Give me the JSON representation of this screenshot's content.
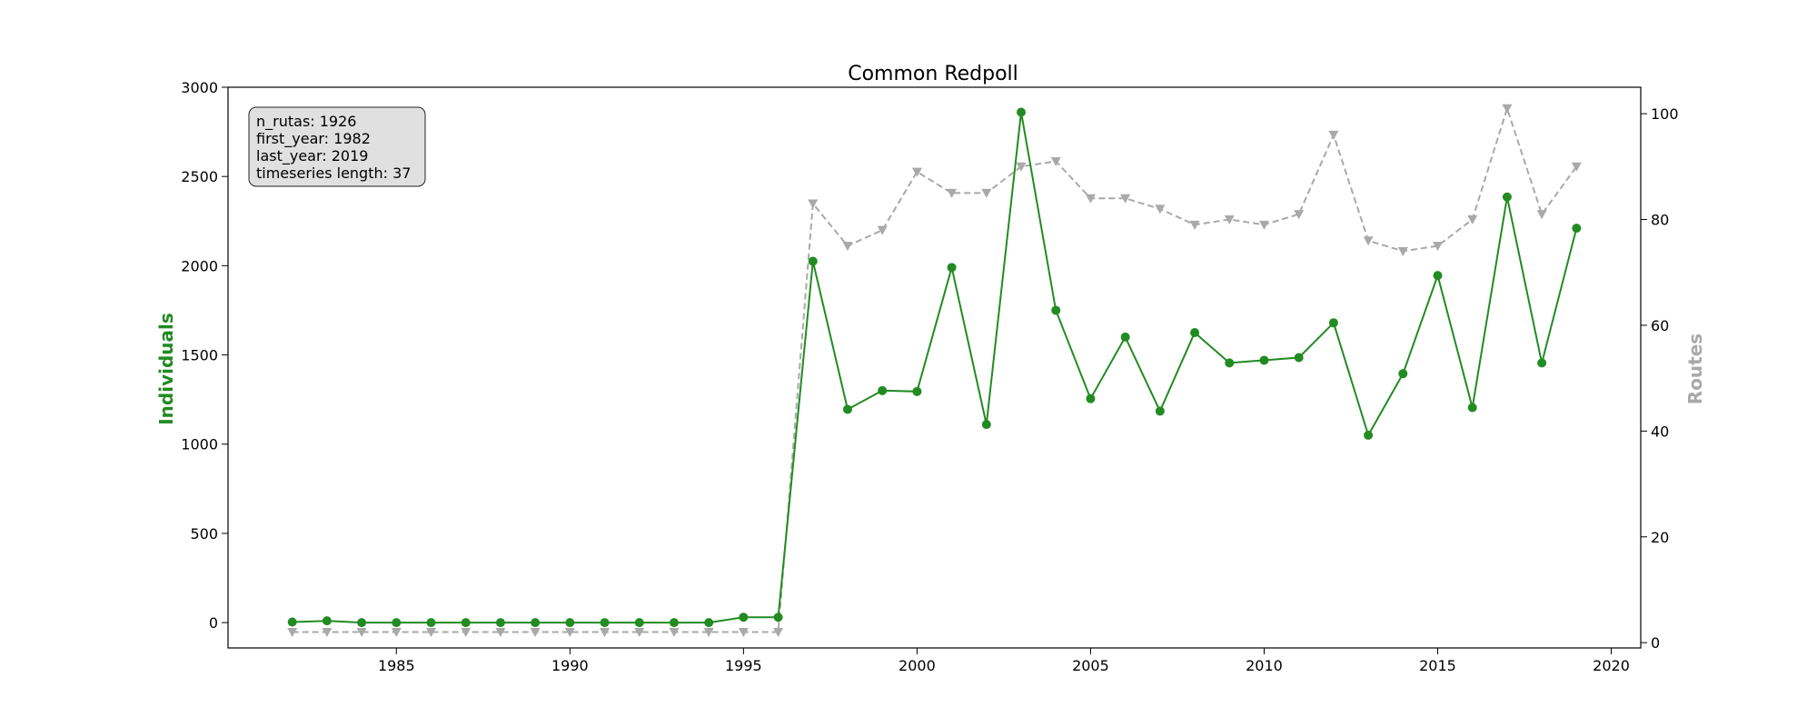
{
  "chart_data": {
    "type": "line",
    "title": "Common Redpoll",
    "xlabel": "",
    "ylabel_left": "Individuals",
    "ylabel_right": "Routes",
    "xlim": [
      1980.15,
      2020.85
    ],
    "ylim_left": [
      -142,
      3000
    ],
    "ylim_right": [
      -1,
      105
    ],
    "x_ticks": [
      1985,
      1990,
      1995,
      2000,
      2005,
      2010,
      2015,
      2020
    ],
    "y_left_ticks": [
      0,
      500,
      1000,
      1500,
      2000,
      2500,
      3000
    ],
    "y_right_ticks": [
      0,
      20,
      40,
      60,
      80,
      100
    ],
    "grid": false,
    "x": [
      1982,
      1983,
      1984,
      1985,
      1986,
      1987,
      1988,
      1989,
      1990,
      1991,
      1992,
      1993,
      1994,
      1995,
      1996,
      1997,
      1998,
      1999,
      2000,
      2001,
      2002,
      2003,
      2004,
      2005,
      2006,
      2007,
      2008,
      2009,
      2010,
      2011,
      2012,
      2013,
      2014,
      2015,
      2016,
      2017,
      2018,
      2019
    ],
    "series": [
      {
        "name": "Individuals",
        "axis": "left",
        "color": "#228b22",
        "marker": "circle",
        "linestyle": "solid",
        "values": [
          3,
          10,
          0,
          0,
          0,
          0,
          0,
          0,
          0,
          0,
          0,
          0,
          0,
          30,
          30,
          2025,
          1195,
          1300,
          1295,
          1990,
          1110,
          2860,
          1750,
          1255,
          1600,
          1185,
          1625,
          1455,
          1470,
          1485,
          1680,
          1050,
          1395,
          1945,
          1205,
          2385,
          1455,
          2210
        ]
      },
      {
        "name": "Routes",
        "axis": "right",
        "color": "#a9a9a9",
        "marker": "triangle-down",
        "linestyle": "dashed",
        "values": [
          2,
          2,
          2,
          2,
          2,
          2,
          2,
          2,
          2,
          2,
          2,
          2,
          2,
          2,
          2,
          83,
          75,
          78,
          89,
          85,
          85,
          90,
          91,
          84,
          84,
          82,
          79,
          80,
          79,
          81,
          96,
          76,
          74,
          75,
          80,
          101,
          81,
          90
        ]
      }
    ],
    "annotation": {
      "lines": [
        "n_rutas: 1926",
        "first_year: 1982",
        "last_year: 2019",
        "timeseries length: 37"
      ],
      "placement": "top-left"
    },
    "colors": {
      "individuals_label": "#228b22",
      "routes_label": "#a9a9a9",
      "annotation_bg": "#e0e0e0"
    }
  }
}
